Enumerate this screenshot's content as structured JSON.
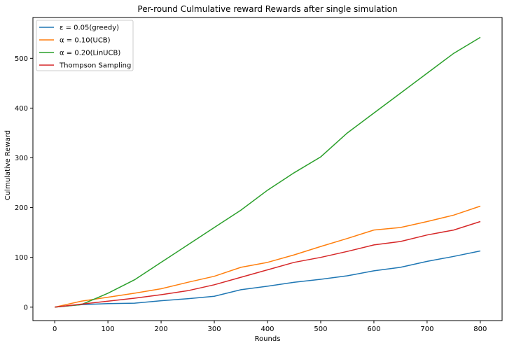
{
  "chart_data": {
    "type": "line",
    "title": "Per-round Culmulative reward Rewards after single simulation",
    "xlabel": "Rounds",
    "ylabel": "Culmulative Reward",
    "xlim": [
      -41,
      841
    ],
    "ylim": [
      -27,
      582
    ],
    "xticks": [
      0,
      100,
      200,
      300,
      400,
      500,
      600,
      700,
      800
    ],
    "yticks": [
      0,
      100,
      200,
      300,
      400,
      500
    ],
    "grid": false,
    "legend_position": "top-left",
    "x": [
      0,
      50,
      100,
      150,
      200,
      250,
      300,
      350,
      400,
      450,
      500,
      550,
      600,
      650,
      700,
      750,
      800
    ],
    "series": [
      {
        "name": "ε =  0.05(greedy)",
        "color": "#1f77b4",
        "values": [
          0,
          5,
          7,
          8,
          13,
          17,
          22,
          35,
          42,
          50,
          56,
          63,
          73,
          80,
          92,
          102,
          113
        ]
      },
      {
        "name": "α =  0.10(UCB)",
        "color": "#ff7f0e",
        "values": [
          0,
          12,
          20,
          28,
          37,
          50,
          62,
          80,
          90,
          105,
          122,
          138,
          155,
          160,
          172,
          185,
          203
        ]
      },
      {
        "name": "α =  0.20(LinUCB)",
        "color": "#2ca02c",
        "values": [
          0,
          5,
          28,
          55,
          90,
          125,
          160,
          195,
          235,
          270,
          302,
          350,
          390,
          430,
          470,
          510,
          542
        ]
      },
      {
        "name": "Thompson Sampling",
        "color": "#d62728",
        "values": [
          0,
          6,
          12,
          18,
          25,
          33,
          45,
          60,
          75,
          90,
          100,
          112,
          125,
          132,
          145,
          155,
          172
        ]
      }
    ]
  }
}
